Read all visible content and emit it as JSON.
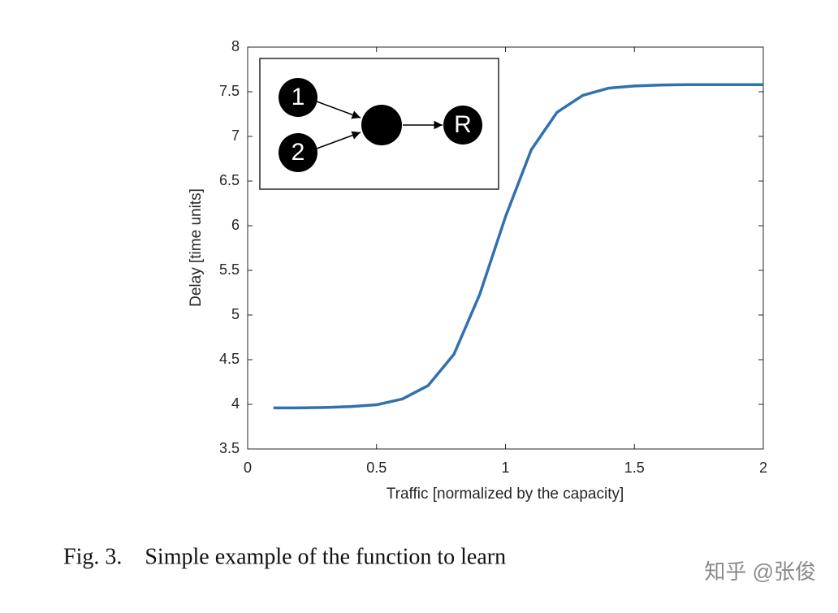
{
  "chart_data": {
    "type": "line",
    "x": [
      0.1,
      0.2,
      0.3,
      0.4,
      0.5,
      0.6,
      0.7,
      0.8,
      0.9,
      1.0,
      1.1,
      1.2,
      1.3,
      1.4,
      1.5,
      1.6,
      1.7,
      1.8,
      1.9,
      2.0
    ],
    "series": [
      {
        "color": "#3171ad",
        "values": [
          3.96,
          3.96,
          3.965,
          3.975,
          3.995,
          4.06,
          4.21,
          4.56,
          5.23,
          6.1,
          6.85,
          7.27,
          7.46,
          7.54,
          7.565,
          7.575,
          7.58,
          7.58,
          7.58,
          7.58
        ]
      }
    ],
    "xlabel": "Traffic [normalized by the capacity]",
    "ylabel": "Delay [time units]",
    "xlim": [
      0,
      2
    ],
    "xticks": [
      0,
      0.5,
      1,
      1.5,
      2
    ],
    "ylim": [
      3.5,
      8
    ],
    "yticks": [
      3.5,
      4,
      4.5,
      5,
      5.5,
      6,
      6.5,
      7,
      7.5,
      8
    ],
    "grid": false
  },
  "inset": {
    "node_labels": [
      "1",
      "2",
      "R"
    ]
  },
  "caption": "Fig. 3. Simple example of the function to learn",
  "watermark": "知乎 @张俊"
}
